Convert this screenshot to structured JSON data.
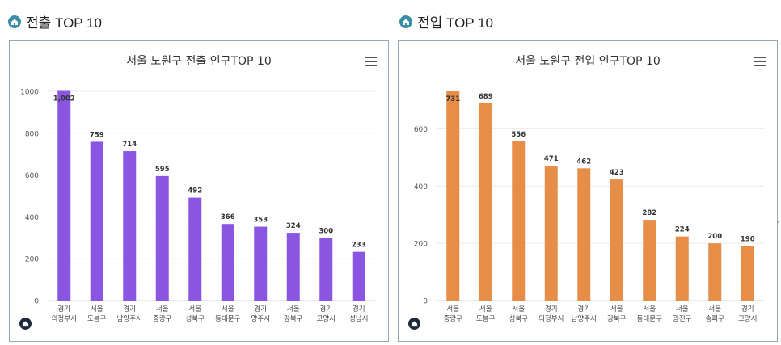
{
  "left": {
    "section_title": "전출 TOP 10",
    "chart_data": {
      "type": "bar",
      "title": "서울 노원구 전출 인구TOP 10",
      "categories": [
        [
          "경기",
          "의정부시"
        ],
        [
          "서울",
          "도봉구"
        ],
        [
          "경기",
          "남양주시"
        ],
        [
          "서울",
          "중랑구"
        ],
        [
          "서울",
          "성북구"
        ],
        [
          "서울",
          "동대문구"
        ],
        [
          "경기",
          "양주시"
        ],
        [
          "서울",
          "강북구"
        ],
        [
          "경기",
          "고양시"
        ],
        [
          "경기",
          "성남시"
        ]
      ],
      "values": [
        1002,
        759,
        714,
        595,
        492,
        366,
        353,
        324,
        300,
        233
      ],
      "value_labels": [
        "1,002",
        "759",
        "714",
        "595",
        "492",
        "366",
        "353",
        "324",
        "300",
        "233"
      ],
      "yticks": [
        0,
        200,
        400,
        600,
        800,
        1000
      ],
      "ylim": [
        0,
        1000
      ],
      "color": "#8a55e0"
    }
  },
  "right": {
    "section_title": "전입 TOP 10",
    "chart_data": {
      "type": "bar",
      "title": "서울 노원구 전입 인구TOP 10",
      "categories": [
        [
          "서울",
          "중랑구"
        ],
        [
          "서울",
          "도봉구"
        ],
        [
          "서울",
          "성북구"
        ],
        [
          "경기",
          "의정부시"
        ],
        [
          "경기",
          "남양주시"
        ],
        [
          "서울",
          "강북구"
        ],
        [
          "서울",
          "동대문구"
        ],
        [
          "서울",
          "광진구"
        ],
        [
          "서울",
          "송파구"
        ],
        [
          "경기",
          "고양시"
        ]
      ],
      "values": [
        731,
        689,
        556,
        471,
        462,
        423,
        282,
        224,
        200,
        190
      ],
      "value_labels": [
        "731",
        "689",
        "556",
        "471",
        "462",
        "423",
        "282",
        "224",
        "200",
        "190"
      ],
      "yticks": [
        0,
        200,
        400,
        600
      ],
      "ylim": [
        0,
        731
      ],
      "color": "#e68e48"
    }
  },
  "side_mark": "'"
}
